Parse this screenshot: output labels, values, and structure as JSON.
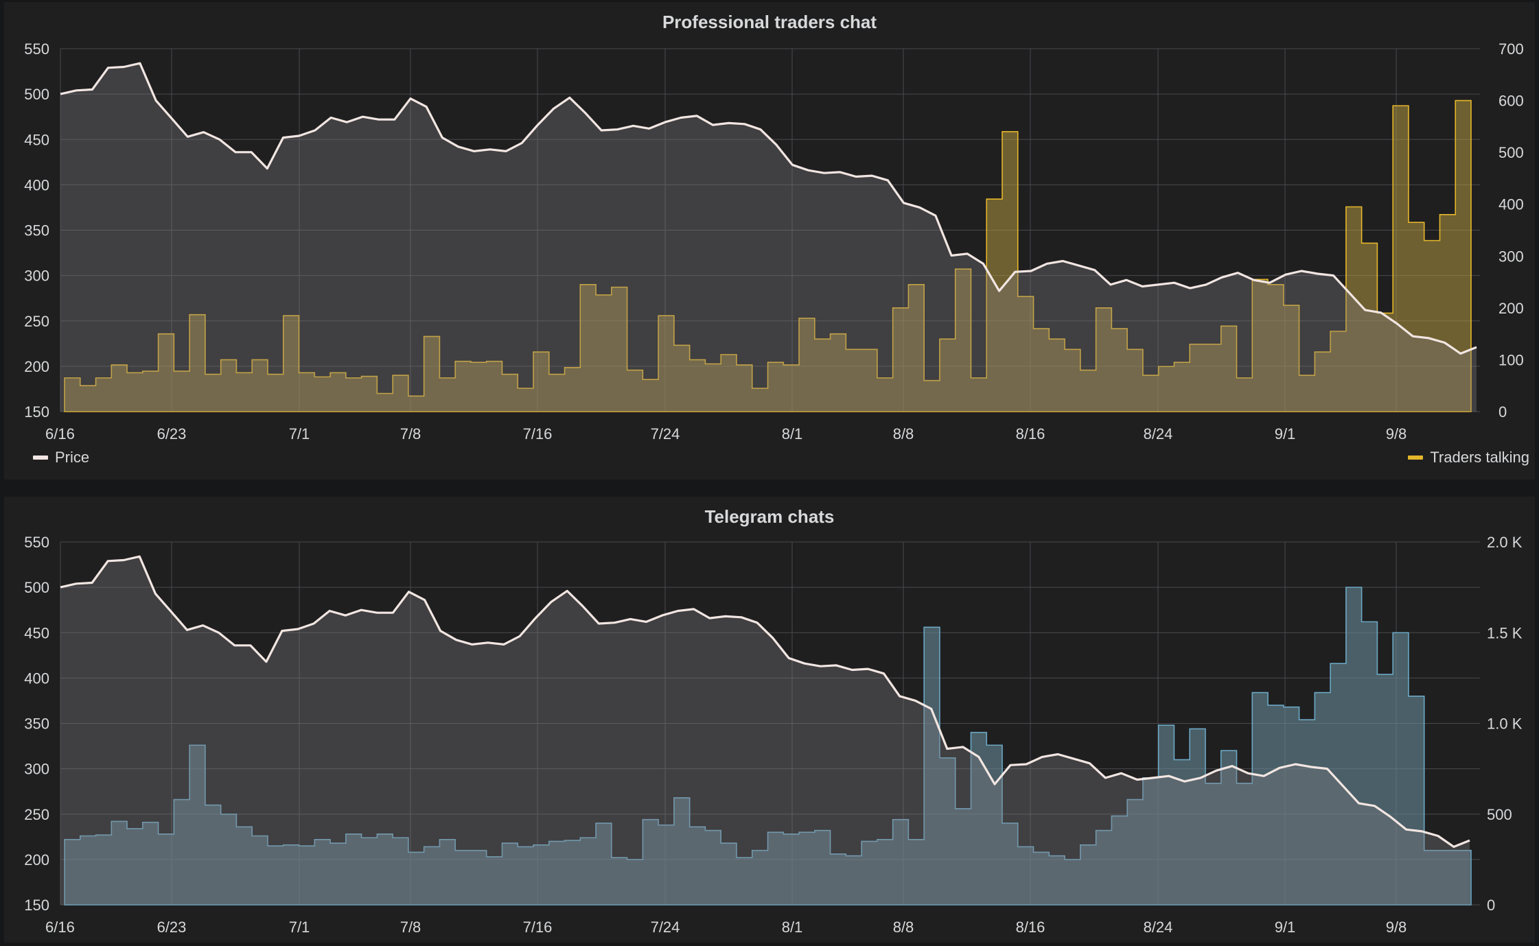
{
  "colors": {
    "price": "#f2e6e2",
    "priceFill": "rgba(125,122,130,0.35)",
    "traders": "#e5b72a",
    "tradersFill": "rgba(186,158,66,0.52)",
    "telegram": "#6ca8c4",
    "telegramFill": "rgba(105,141,155,0.58)",
    "grid": "#4a4a4e"
  },
  "chart_data": [
    {
      "type": "line",
      "title": "Professional traders chat",
      "x_ticks": [
        "6/16",
        "6/23",
        "7/1",
        "7/8",
        "7/16",
        "7/24",
        "8/1",
        "8/8",
        "8/16",
        "8/24",
        "9/1",
        "9/8"
      ],
      "x_range_days": [
        0,
        89
      ],
      "y_left": {
        "range": [
          150,
          550
        ],
        "ticks": [
          "150",
          "200",
          "250",
          "300",
          "350",
          "400",
          "450",
          "500",
          "550"
        ]
      },
      "y_right": {
        "range": [
          0,
          700
        ],
        "ticks": [
          "0",
          "100",
          "200",
          "300",
          "400",
          "500",
          "600",
          "700"
        ]
      },
      "grid": true,
      "legend": {
        "left": "Price",
        "right": "Traders talking"
      },
      "series": [
        {
          "name": "Price",
          "axis": "left",
          "style": "line-area",
          "values": [
            500,
            504,
            505,
            529,
            530,
            534,
            493,
            473,
            453,
            458,
            450,
            436,
            436,
            418,
            452,
            454,
            460,
            474,
            469,
            475,
            472,
            472,
            495,
            486,
            452,
            442,
            437,
            439,
            437,
            446,
            466,
            484,
            496,
            479,
            460,
            461,
            465,
            462,
            469,
            474,
            476,
            466,
            468,
            467,
            461,
            444,
            422,
            416,
            413,
            414,
            409,
            410,
            405,
            380,
            375,
            366,
            322,
            324,
            313,
            283,
            304,
            305,
            313,
            316,
            311,
            306,
            290,
            295,
            288,
            290,
            292,
            286,
            290,
            298,
            303,
            295,
            292,
            301,
            305,
            302,
            300,
            281,
            262,
            259,
            247,
            233,
            231,
            226,
            214,
            221
          ]
        },
        {
          "name": "Traders talking",
          "axis": "right",
          "style": "bars",
          "values": [
            65,
            50,
            65,
            90,
            75,
            78,
            150,
            78,
            187,
            72,
            100,
            75,
            100,
            72,
            185,
            75,
            67,
            75,
            65,
            68,
            35,
            70,
            30,
            145,
            65,
            97,
            95,
            97,
            72,
            45,
            115,
            72,
            85,
            245,
            225,
            240,
            80,
            62,
            185,
            128,
            100,
            92,
            110,
            90,
            45,
            95,
            90,
            180,
            140,
            150,
            120,
            120,
            65,
            200,
            245,
            60,
            140,
            275,
            65,
            410,
            540,
            222,
            160,
            140,
            120,
            80,
            200,
            160,
            120,
            70,
            87,
            95,
            130,
            130,
            165,
            65,
            255,
            245,
            205,
            70,
            115,
            155,
            395,
            325,
            190,
            590,
            365,
            330,
            380,
            600
          ]
        }
      ]
    },
    {
      "type": "line",
      "title": "Telegram chats",
      "x_ticks": [
        "6/16",
        "6/23",
        "7/1",
        "7/8",
        "7/16",
        "7/24",
        "8/1",
        "8/8",
        "8/16",
        "8/24",
        "9/1",
        "9/8"
      ],
      "x_range_days": [
        0,
        89
      ],
      "y_left": {
        "range": [
          150,
          550
        ],
        "ticks": [
          "150",
          "200",
          "250",
          "300",
          "350",
          "400",
          "450",
          "500",
          "550"
        ]
      },
      "y_right": {
        "range": [
          0,
          2000
        ],
        "ticks": [
          "0",
          "500",
          "1.0 K",
          "1.5 K",
          "2.0 K"
        ]
      },
      "grid": true,
      "series": [
        {
          "name": "Price",
          "axis": "left",
          "style": "line-area",
          "values": [
            500,
            504,
            505,
            529,
            530,
            534,
            493,
            473,
            453,
            458,
            450,
            436,
            436,
            418,
            452,
            454,
            460,
            474,
            469,
            475,
            472,
            472,
            495,
            486,
            452,
            442,
            437,
            439,
            437,
            446,
            466,
            484,
            496,
            479,
            460,
            461,
            465,
            462,
            469,
            474,
            476,
            466,
            468,
            467,
            461,
            444,
            422,
            416,
            413,
            414,
            409,
            410,
            405,
            380,
            375,
            366,
            322,
            324,
            313,
            283,
            304,
            305,
            313,
            316,
            311,
            306,
            290,
            295,
            288,
            290,
            292,
            286,
            290,
            298,
            303,
            295,
            292,
            301,
            305,
            302,
            300,
            281,
            262,
            259,
            247,
            233,
            231,
            226,
            214,
            221
          ]
        },
        {
          "name": "Telegram chats",
          "axis": "right",
          "style": "bars",
          "values": [
            360,
            380,
            385,
            460,
            420,
            455,
            390,
            580,
            880,
            550,
            500,
            430,
            380,
            325,
            330,
            325,
            360,
            340,
            390,
            370,
            390,
            370,
            290,
            320,
            360,
            300,
            300,
            265,
            340,
            320,
            330,
            350,
            355,
            370,
            450,
            260,
            250,
            470,
            440,
            590,
            430,
            410,
            340,
            260,
            300,
            400,
            390,
            400,
            410,
            280,
            270,
            350,
            360,
            470,
            360,
            1530,
            810,
            530,
            950,
            880,
            450,
            320,
            290,
            270,
            250,
            330,
            410,
            490,
            580,
            700,
            990,
            800,
            970,
            670,
            850,
            670,
            1170,
            1100,
            1090,
            1020,
            1170,
            1330,
            1750,
            1560,
            1270,
            1500,
            1150,
            300,
            300,
            300
          ]
        }
      ]
    }
  ]
}
